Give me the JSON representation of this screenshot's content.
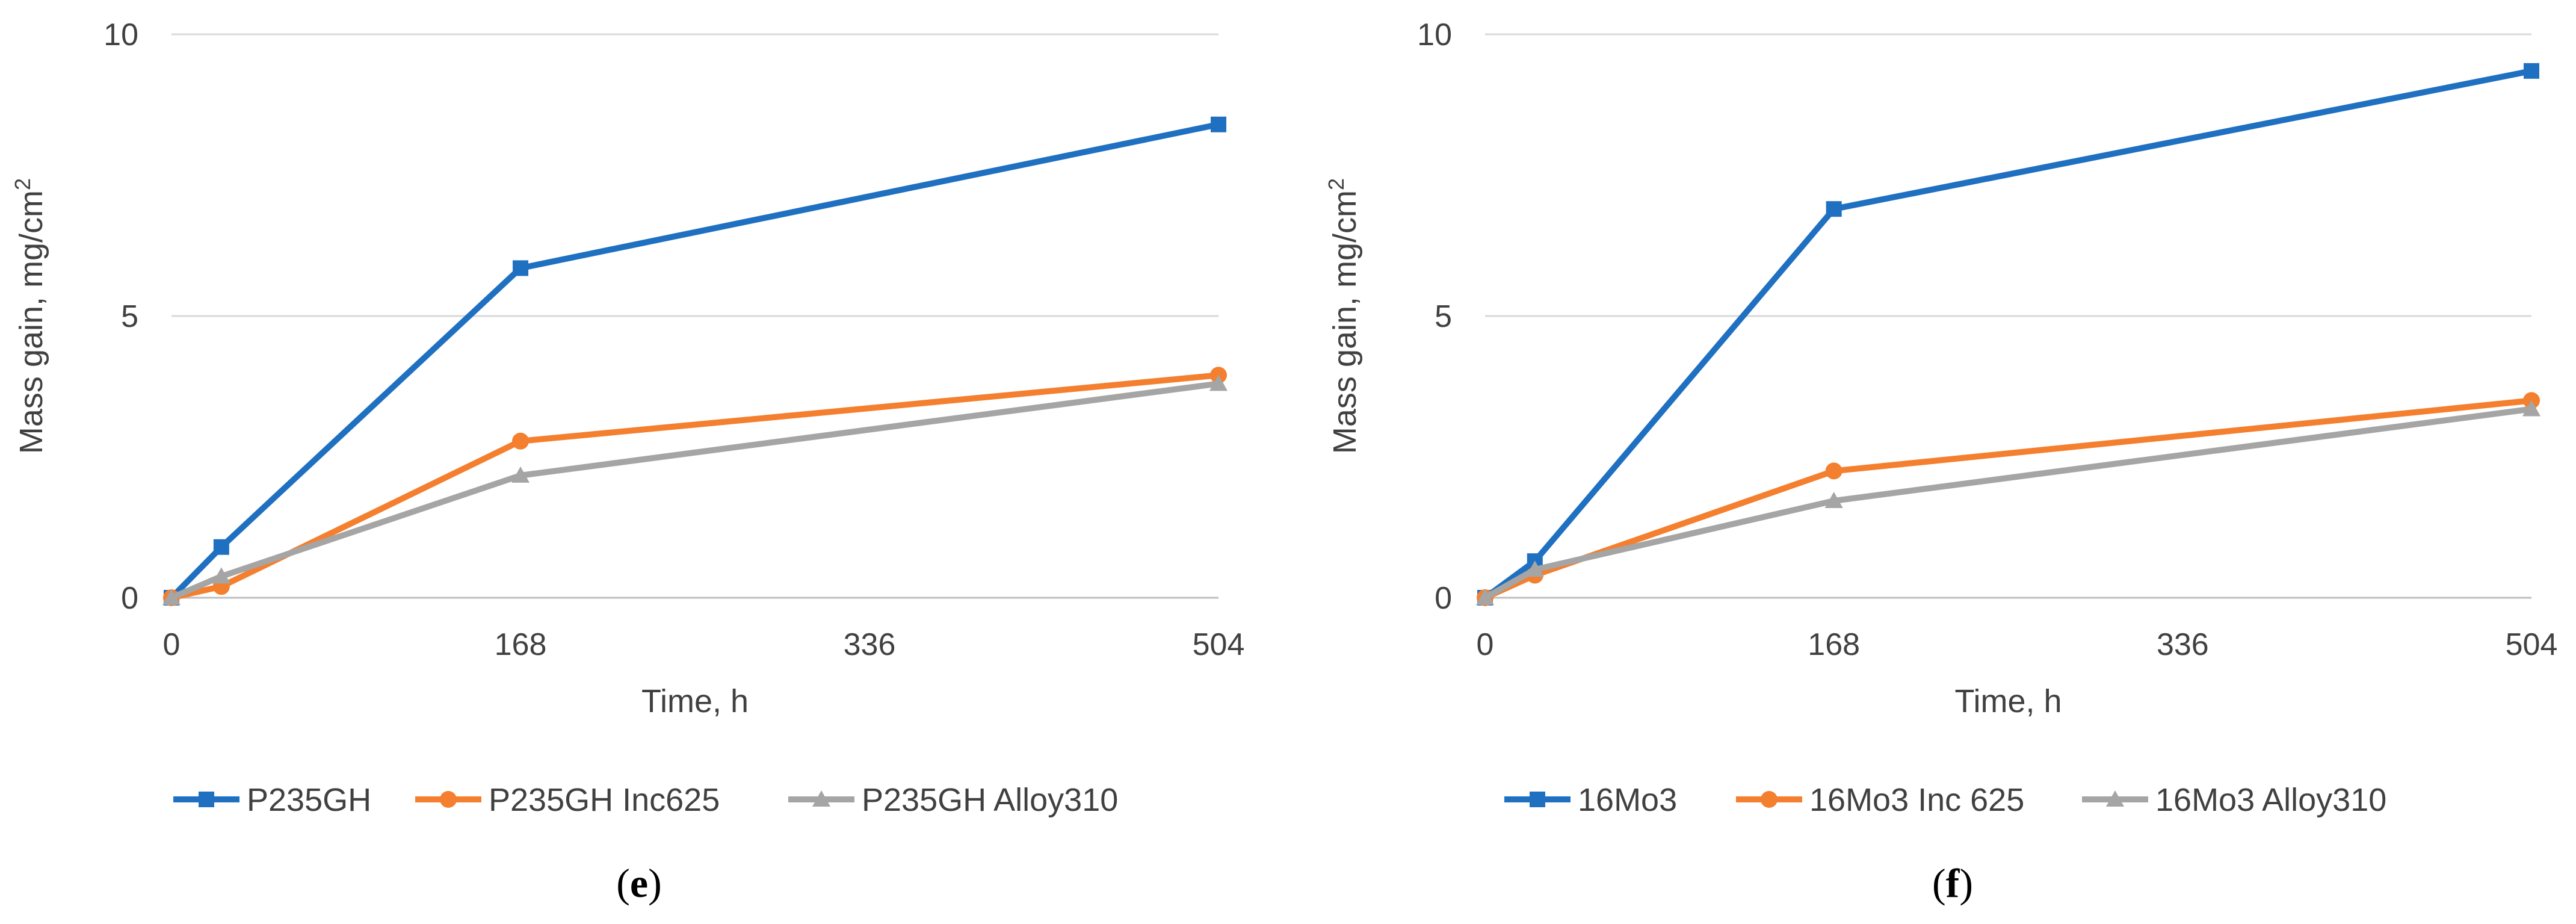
{
  "chart_data": [
    {
      "type": "line",
      "panel_label": "e",
      "xlabel": "Time, h",
      "ylabel": "Mass gain, mg/cm",
      "ylabel_sup": "2",
      "xlim": [
        0,
        504
      ],
      "ylim": [
        0,
        10
      ],
      "xticks": [
        0,
        168,
        336,
        504
      ],
      "yticks": [
        0,
        5,
        10
      ],
      "grid": "horizontal",
      "legend_position": "bottom",
      "series": [
        {
          "name": "P235GH",
          "color": "#1f70c1",
          "marker": "square",
          "x": [
            0,
            24,
            168,
            504
          ],
          "y": [
            0,
            0.9,
            5.85,
            8.4
          ]
        },
        {
          "name": "P235GH Inc625",
          "color": "#f47f2e",
          "marker": "circle",
          "x": [
            0,
            24,
            168,
            504
          ],
          "y": [
            0,
            0.2,
            2.78,
            3.95
          ]
        },
        {
          "name": "P235GH Alloy310",
          "color": "#a5a5a5",
          "marker": "triangle",
          "x": [
            0,
            24,
            168,
            504
          ],
          "y": [
            0,
            0.38,
            2.17,
            3.8
          ]
        }
      ]
    },
    {
      "type": "line",
      "panel_label": "f",
      "xlabel": "Time, h",
      "ylabel": "Mass gain, mg/cm",
      "ylabel_sup": "2",
      "xlim": [
        0,
        504
      ],
      "ylim": [
        0,
        10
      ],
      "xticks": [
        0,
        168,
        336,
        504
      ],
      "yticks": [
        0,
        5,
        10
      ],
      "grid": "horizontal",
      "legend_position": "bottom",
      "series": [
        {
          "name": "16Mo3",
          "color": "#1f70c1",
          "marker": "square",
          "x": [
            0,
            24,
            168,
            504
          ],
          "y": [
            0,
            0.65,
            6.9,
            9.35
          ]
        },
        {
          "name": "16Mo3 Inc 625",
          "color": "#f47f2e",
          "marker": "circle",
          "x": [
            0,
            24,
            168,
            504
          ],
          "y": [
            0,
            0.4,
            2.25,
            3.5
          ]
        },
        {
          "name": "16Mo3 Alloy310",
          "color": "#a5a5a5",
          "marker": "triangle",
          "x": [
            0,
            24,
            168,
            504
          ],
          "y": [
            0,
            0.5,
            1.72,
            3.35
          ]
        }
      ]
    }
  ]
}
